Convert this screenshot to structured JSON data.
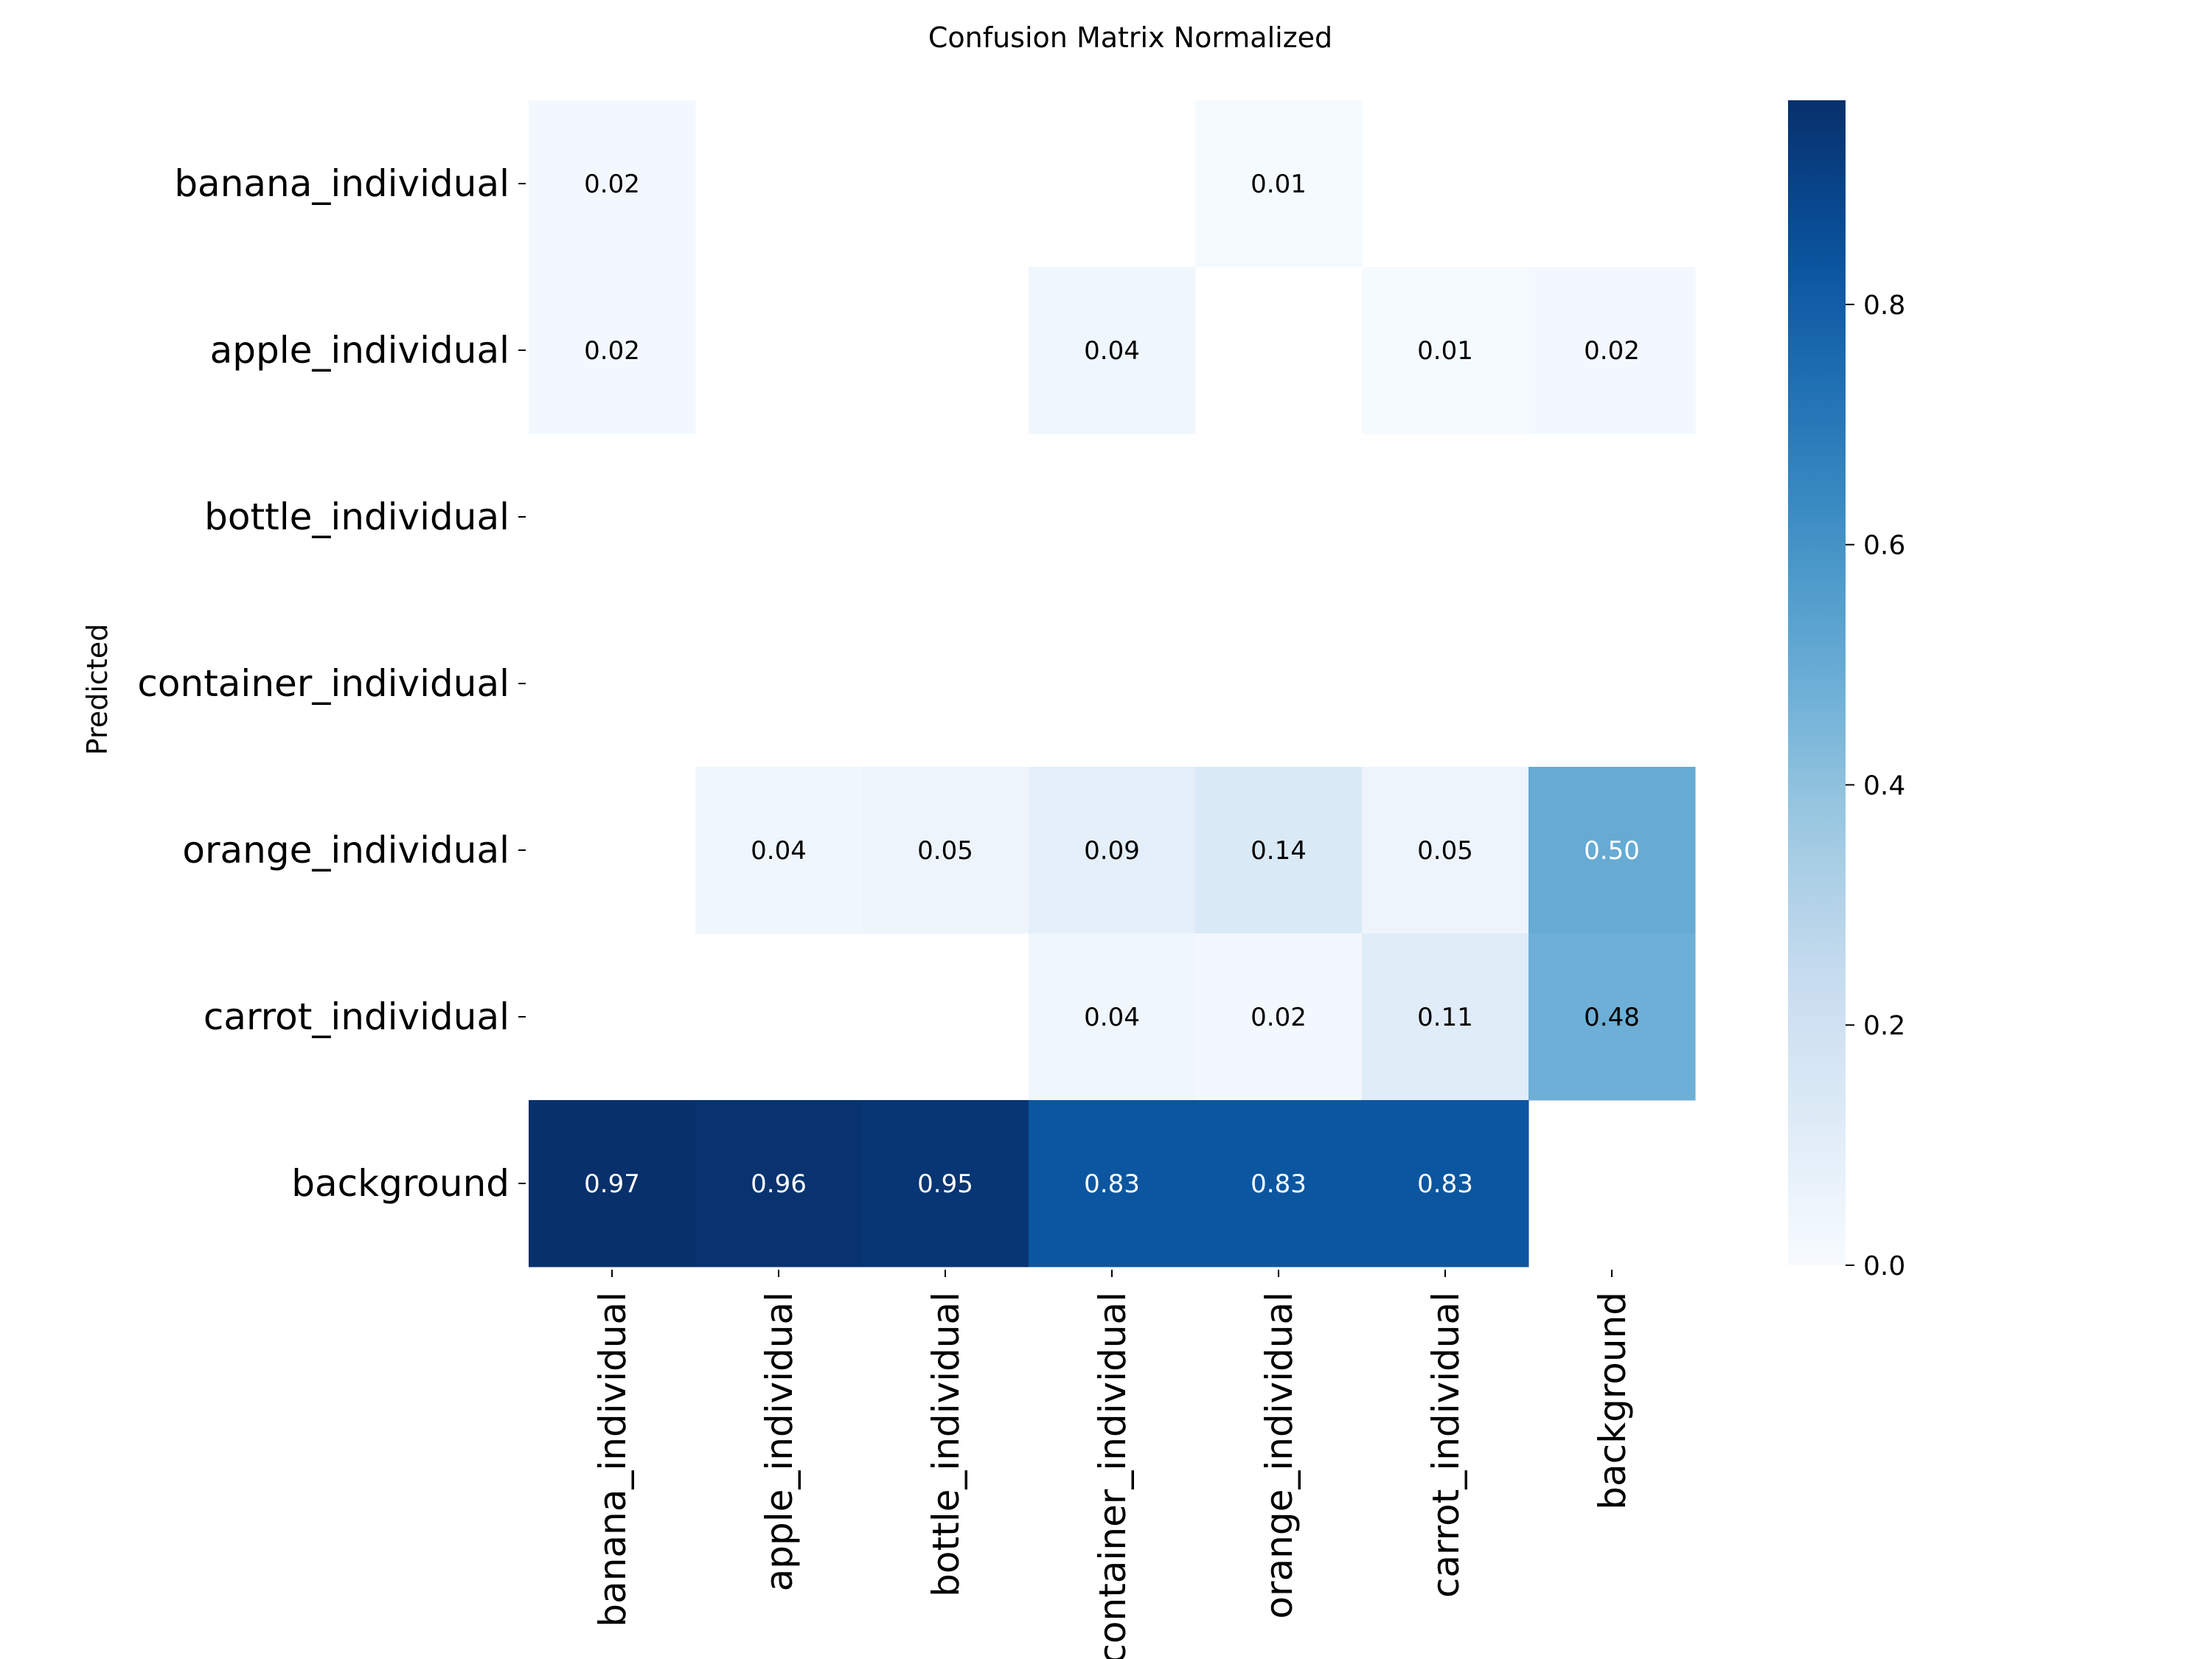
{
  "chart_data": {
    "type": "heatmap",
    "title": "Confusion Matrix Normalized",
    "xlabel": "",
    "ylabel": "Predicted",
    "row_labels": [
      "banana_individual",
      "apple_individual",
      "bottle_individual",
      "container_individual",
      "orange_individual",
      "carrot_individual",
      "background"
    ],
    "col_labels": [
      "banana_individual",
      "apple_individual",
      "bottle_individual",
      "container_individual",
      "orange_individual",
      "carrot_individual",
      "background"
    ],
    "values": [
      [
        0.02,
        null,
        null,
        null,
        0.01,
        null,
        null
      ],
      [
        0.02,
        null,
        null,
        0.04,
        null,
        0.01,
        0.02
      ],
      [
        null,
        null,
        null,
        null,
        null,
        null,
        null
      ],
      [
        null,
        null,
        null,
        null,
        null,
        null,
        null
      ],
      [
        null,
        0.04,
        0.05,
        0.09,
        0.14,
        0.05,
        0.5
      ],
      [
        null,
        null,
        null,
        0.04,
        0.02,
        0.11,
        0.48
      ],
      [
        0.97,
        0.96,
        0.95,
        0.83,
        0.83,
        0.83,
        null
      ]
    ],
    "colormap": "Blues",
    "vmin": 0.0,
    "vmax": 0.97,
    "colorbar_ticks": [
      "0.0",
      "0.2",
      "0.4",
      "0.6",
      "0.8"
    ],
    "colorbar_tick_values": [
      0.0,
      0.2,
      0.4,
      0.6,
      0.8
    ],
    "annotation_dark_color": "#000000",
    "annotation_light_color": "#ffffff"
  }
}
